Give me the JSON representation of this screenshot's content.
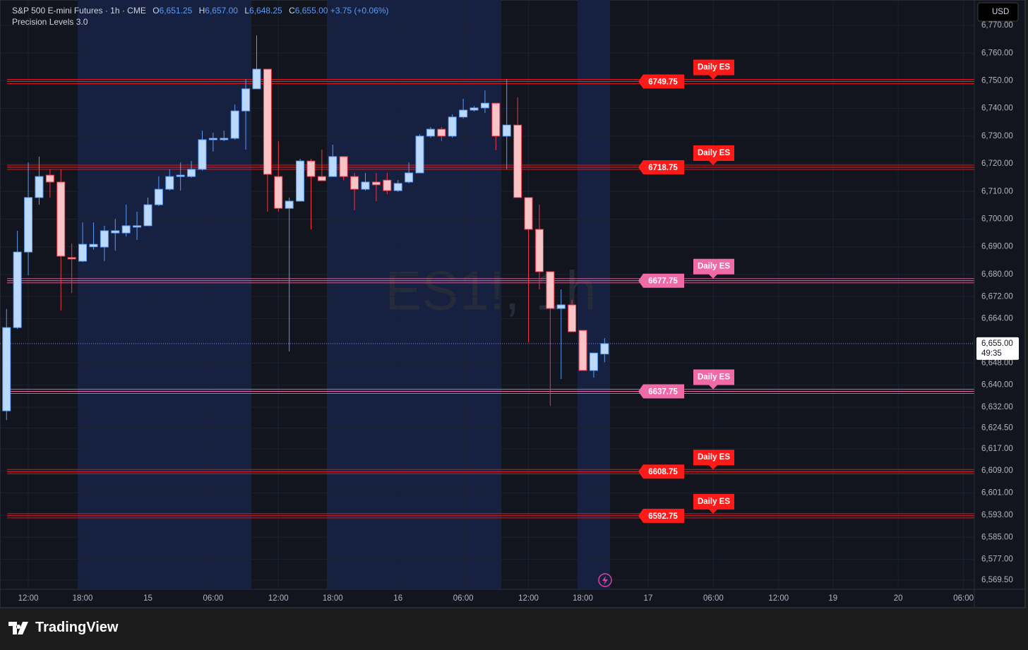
{
  "legend": {
    "symbol": "S&P 500 E-mini Futures · 1h · CME",
    "open_label": "O",
    "open": "6,651.25",
    "high_label": "H",
    "high": "6,657.00",
    "low_label": "L",
    "low": "6,648.25",
    "close_label": "C",
    "close": "6,655.00",
    "change": "+3.75 (+0.06%)",
    "indicator": "Precision Levels 3.0"
  },
  "watermark": "ES1!, 1h",
  "currency": "USD",
  "footer": "TradingView",
  "chart_data": {
    "type": "candlestick",
    "open": [
      6630.7,
      6660.8,
      6688.1,
      6707.8,
      6715.9,
      6713.4,
      6686.1,
      6684.8,
      6690,
      6689.9,
      6695,
      6695.0,
      6697.1,
      6697.6,
      6705.2,
      6710.8,
      6715.4,
      6715.4,
      6718.0,
      6728.7,
      6728.7,
      6729.2,
      6739.1,
      6747.1,
      6754.2,
      6715.4,
      6703.9,
      6706.5,
      6721.0,
      6715.4,
      6715.4,
      6722.6,
      6715.4,
      6710.8,
      6713.4,
      6714.1,
      6710.3,
      6713.4,
      6716.7,
      6730.0,
      6732.5,
      6730.0,
      6736.9,
      6739.4,
      6740.2,
      6741.9,
      6730.0,
      6734.0,
      6707.8,
      6696.3,
      6681.0,
      6667.7,
      6669.0,
      6659.8,
      6645.3,
      6651.25
    ],
    "high": [
      6667.5,
      6695.8,
      6720.5,
      6722.6,
      6718.0,
      6718.0,
      6691.2,
      6698.8,
      6698.8,
      6697.6,
      6700.1,
      6705.2,
      6702.7,
      6707.8,
      6715.4,
      6718.0,
      6720.5,
      6721.0,
      6732.0,
      6731.2,
      6732.0,
      6741.4,
      6750.6,
      6766.4,
      6754.2,
      6728.2,
      6707.8,
      6721.8,
      6721.8,
      6725.1,
      6726.9,
      6722.6,
      6716.7,
      6716.7,
      6716.7,
      6716.7,
      6714.1,
      6720.5,
      6730.7,
      6733.3,
      6733.3,
      6737.9,
      6743.5,
      6740.9,
      6746.5,
      6741.9,
      6750.6,
      6744.0,
      6707.8,
      6705.2,
      6681.0,
      6674.6,
      6670.8,
      6659.8,
      6651.6,
      6657
    ],
    "low": [
      6627.4,
      6660.3,
      6679.7,
      6705.2,
      6707.8,
      6667.0,
      6673.3,
      6684.5,
      6689,
      6684.8,
      6688.6,
      6693.7,
      6692.5,
      6697.6,
      6704.7,
      6710.3,
      6710.3,
      6714.9,
      6717.5,
      6724.4,
      6728.2,
      6728.7,
      6725.1,
      6747.1,
      6702.7,
      6702.7,
      6652.2,
      6706.5,
      6696.3,
      6713.9,
      6715.4,
      6714.1,
      6703.2,
      6710.3,
      6706.5,
      6709.0,
      6709.8,
      6712.9,
      6716.7,
      6729.4,
      6728.2,
      6729.4,
      6736.3,
      6738.9,
      6738.4,
      6724.9,
      6718.0,
      6707.8,
      6655.5,
      6674.6,
      6632.5,
      6642.2,
      6659.3,
      6645.3,
      6642.7,
      6648.25
    ],
    "close": [
      6660.8,
      6688.1,
      6707.8,
      6715.4,
      6713.4,
      6686.6,
      6685.6,
      6690.9,
      6690.9,
      6695.8,
      6695.8,
      6697.6,
      6697.6,
      6705.2,
      6710.8,
      6715.4,
      6715.9,
      6718.0,
      6728.7,
      6729.2,
      6729.2,
      6739.1,
      6747.1,
      6754.2,
      6716.2,
      6703.9,
      6706.5,
      6721.0,
      6715.4,
      6713.9,
      6722.6,
      6715.4,
      6710.8,
      6713.4,
      6712.4,
      6710.3,
      6712.9,
      6716.7,
      6730.0,
      6732.5,
      6730.0,
      6736.9,
      6739.4,
      6740.2,
      6741.9,
      6730.0,
      6734.0,
      6707.8,
      6696.3,
      6681.0,
      6667.7,
      6669.0,
      6659.3,
      6645.3,
      6651.6,
      6655
    ],
    "up_color": "#bbd9fb",
    "up_border": "#5b9cf6",
    "down_color": "#f8c4c8",
    "down_border": "#f23645",
    "xlim": [
      -0.6,
      89.0
    ],
    "xticks": [
      {
        "value": 2,
        "label": "12:00"
      },
      {
        "value": 7,
        "label": "18:00"
      },
      {
        "value": 13,
        "label": "15"
      },
      {
        "value": 19,
        "label": "06:00"
      },
      {
        "value": 25,
        "label": "12:00"
      },
      {
        "value": 30,
        "label": "18:00"
      },
      {
        "value": 36,
        "label": "16"
      },
      {
        "value": 42,
        "label": "06:00"
      },
      {
        "value": 48,
        "label": "12:00"
      },
      {
        "value": 53,
        "label": "18:00"
      },
      {
        "value": 59,
        "label": "17"
      },
      {
        "value": 65,
        "label": "06:00"
      },
      {
        "value": 71,
        "label": "12:00"
      },
      {
        "value": 76,
        "label": "19"
      },
      {
        "value": 82,
        "label": "20"
      },
      {
        "value": 88,
        "label": "06:00"
      }
    ],
    "ylim": [
      6566.2,
      6779.2
    ],
    "yticks": [
      {
        "value": 6770,
        "label": "6,770.00"
      },
      {
        "value": 6760,
        "label": "6,760.00"
      },
      {
        "value": 6750,
        "label": "6,750.00"
      },
      {
        "value": 6740,
        "label": "6,740.00"
      },
      {
        "value": 6730,
        "label": "6,730.00"
      },
      {
        "value": 6720,
        "label": "6,720.00"
      },
      {
        "value": 6710,
        "label": "6,710.00"
      },
      {
        "value": 6700,
        "label": "6,700.00"
      },
      {
        "value": 6690,
        "label": "6,690.00"
      },
      {
        "value": 6680,
        "label": "6,680.00"
      },
      {
        "value": 6672,
        "label": "6,672.00"
      },
      {
        "value": 6664,
        "label": "6,664.00"
      },
      {
        "value": 6648,
        "label": "6,648.00"
      },
      {
        "value": 6640,
        "label": "6,640.00"
      },
      {
        "value": 6632,
        "label": "6,632.00"
      },
      {
        "value": 6624.5,
        "label": "6,624.50"
      },
      {
        "value": 6617,
        "label": "6,617.00"
      },
      {
        "value": 6609,
        "label": "6,609.00"
      },
      {
        "value": 6601,
        "label": "6,601.00"
      },
      {
        "value": 6593,
        "label": "6,593.00"
      },
      {
        "value": 6585,
        "label": "6,585.00"
      },
      {
        "value": 6577,
        "label": "6,577.00"
      },
      {
        "value": 6569.5,
        "label": "6,569.50"
      }
    ],
    "grid": true,
    "current": {
      "value": 6655,
      "label": "6,655.00",
      "countdown": "49:35",
      "color": "#9c7cf0"
    },
    "levels": [
      {
        "value": 6749.75,
        "tag": "Daily ES",
        "color": "#ff1a1a"
      },
      {
        "value": 6718.75,
        "tag": "Daily ES",
        "color": "#ff1a1a"
      },
      {
        "value": 6677.75,
        "tag": "Daily ES",
        "color": "#f06aa8"
      },
      {
        "value": 6637.75,
        "tag": "Daily ES",
        "color": "#f06aa8"
      },
      {
        "value": 6608.75,
        "tag": "Daily ES",
        "color": "#ff1a1a"
      },
      {
        "value": 6592.75,
        "tag": "Daily ES",
        "color": "#ff1a1a"
      }
    ]
  }
}
